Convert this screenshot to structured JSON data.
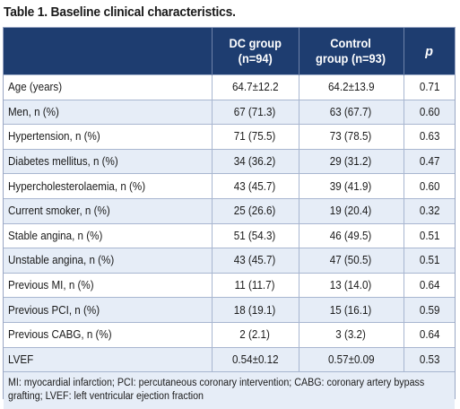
{
  "caption": "Table 1. Baseline clinical characteristics.",
  "columns": [
    {
      "line1": "DC group",
      "line2": "(n=94)"
    },
    {
      "line1": "Control",
      "line2": "group (n=93)"
    },
    {
      "line1": "p",
      "line2": ""
    }
  ],
  "rows": [
    {
      "label": "Age (years)",
      "dc": "64.7±12.2",
      "control": "64.2±13.9",
      "p": "0.71"
    },
    {
      "label": "Men, n (%)",
      "dc": "67 (71.3)",
      "control": "63 (67.7)",
      "p": "0.60"
    },
    {
      "label": "Hypertension, n (%)",
      "dc": "71 (75.5)",
      "control": "73 (78.5)",
      "p": "0.63"
    },
    {
      "label": "Diabetes mellitus, n (%)",
      "dc": "34 (36.2)",
      "control": "29 (31.2)",
      "p": "0.47"
    },
    {
      "label": "Hypercholesterolaemia, n (%)",
      "dc": "43 (45.7)",
      "control": "39 (41.9)",
      "p": "0.60"
    },
    {
      "label": "Current smoker, n (%)",
      "dc": "25 (26.6)",
      "control": "19 (20.4)",
      "p": "0.32"
    },
    {
      "label": "Stable angina, n (%)",
      "dc": "51 (54.3)",
      "control": "46 (49.5)",
      "p": "0.51"
    },
    {
      "label": "Unstable angina, n (%)",
      "dc": "43 (45.7)",
      "control": "47 (50.5)",
      "p": "0.51"
    },
    {
      "label": "Previous MI, n (%)",
      "dc": "11 (11.7)",
      "control": "13 (14.0)",
      "p": "0.64"
    },
    {
      "label": "Previous PCI, n (%)",
      "dc": "18 (19.1)",
      "control": "15 (16.1)",
      "p": "0.59"
    },
    {
      "label": "Previous CABG, n (%)",
      "dc": "2 (2.1)",
      "control": "3 (3.2)",
      "p": "0.64"
    },
    {
      "label": "LVEF",
      "dc": "0.54±0.12",
      "control": "0.57±0.09",
      "p": "0.53"
    }
  ],
  "footnote": "MI: myocardial infarction; PCI: percutaneous coronary intervention; CABG: coronary artery bypass grafting; LVEF: left ventricular ejection fraction",
  "colors": {
    "header": "#1e3d70",
    "band": "#e6edf7",
    "border": "#a8b6d0"
  }
}
